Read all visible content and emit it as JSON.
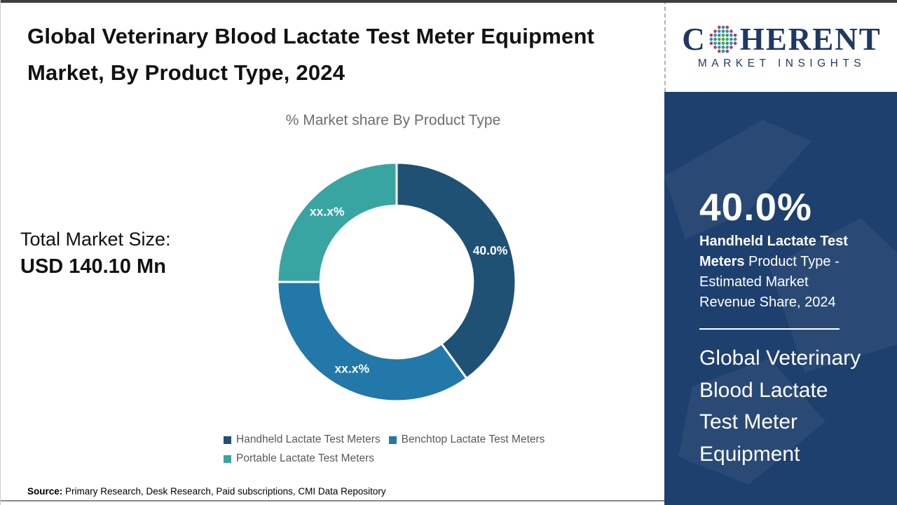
{
  "title": "Global Veterinary Blood Lactate Test Meter Equipment Market, By Product Type, 2024",
  "market_size": {
    "label": "Total Market Size:",
    "value": "USD 140.10 Mn"
  },
  "source": {
    "label": "Source:",
    "text": " Primary Research, Desk Research, Paid subscriptions, CMI Data Repository"
  },
  "logo": {
    "prefix": "C",
    "suffix": "HERENT",
    "tagline": "MARKET INSIGHTS",
    "navy": "#1F3864",
    "globe_icon": "dotted-globe"
  },
  "panel": {
    "bg_color": "#1E406E",
    "stat_value": "40.0%",
    "stat_product": "Handheld Lactate Test Meters",
    "stat_desc": " Product Type - Estimated Market Revenue Share, 2024",
    "footer_title": "Global Veterinary Blood Lactate Test Meter Equipment"
  },
  "chart_data": {
    "type": "pie",
    "donut": true,
    "title": "% Market share By Product Type",
    "start_angle_deg": 0,
    "legend_position": "bottom",
    "hole_ratio": 0.64,
    "segments": [
      {
        "name": "Handheld Lactate Test Meters",
        "label": "40.0%",
        "value": 40.0,
        "color": "#1F5174"
      },
      {
        "name": "Benchtop Lactate Test Meters",
        "label": "xx.x%",
        "value": 35.0,
        "estimated_from_arc": true,
        "color": "#2278A8"
      },
      {
        "name": "Portable Lactate Test Meters",
        "label": "xx.x%",
        "value": 25.0,
        "estimated_from_arc": true,
        "color": "#38A5A3"
      }
    ]
  }
}
